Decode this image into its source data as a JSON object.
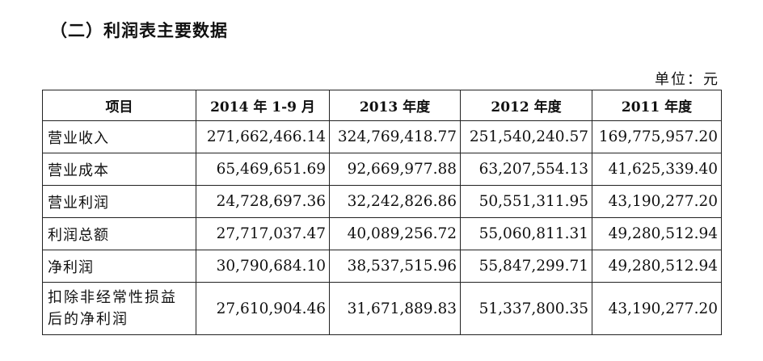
{
  "title": "（二）利润表主要数据",
  "unit": "单位：元",
  "table": {
    "headers": [
      "项目",
      "2014 年 1-9 月",
      "2013 年度",
      "2012 年度",
      "2011 年度"
    ],
    "rows": [
      {
        "label": "营业收入",
        "values": [
          "271,662,466.14",
          "324,769,418.77",
          "251,540,240.57",
          "169,775,957.20"
        ]
      },
      {
        "label": "营业成本",
        "values": [
          "65,469,651.69",
          "92,669,977.88",
          "63,207,554.13",
          "41,625,339.40"
        ]
      },
      {
        "label": "营业利润",
        "values": [
          "24,728,697.36",
          "32,242,826.86",
          "50,551,311.95",
          "43,190,277.20"
        ]
      },
      {
        "label": "利润总额",
        "values": [
          "27,717,037.47",
          "40,089,256.72",
          "55,060,811.31",
          "49,280,512.94"
        ]
      },
      {
        "label": "净利润",
        "values": [
          "30,790,684.10",
          "38,537,515.96",
          "55,847,299.71",
          "49,280,512.94"
        ]
      },
      {
        "label": "扣除非经常性损益后的净利润",
        "values": [
          "27,610,904.46",
          "31,671,889.83",
          "51,337,800.35",
          "43,190,277.20"
        ]
      }
    ]
  }
}
